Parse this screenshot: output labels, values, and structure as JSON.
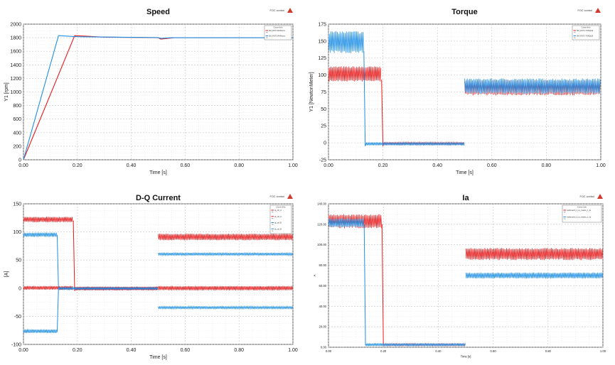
{
  "colors": {
    "series_red": "#e8191a",
    "series_blue": "#1e8fe6",
    "grid": "#c4c4c4",
    "axis": "#333333",
    "legend_border": "#777777",
    "brand": "#d03a2f"
  },
  "chart_data": [
    {
      "id": "speed",
      "type": "line",
      "title": "Speed",
      "badge": "FOC control",
      "xlabel": "Time [s]",
      "ylabel": "Y1 [rpm]",
      "xlim": [
        0,
        1.0
      ],
      "ylim": [
        0,
        2000
      ],
      "xticks": [
        0.0,
        0.2,
        0.4,
        0.6,
        0.8,
        1.0
      ],
      "xtick_labels": [
        "0.00",
        "0.20",
        "0.40",
        "0.60",
        "0.80",
        "1.00"
      ],
      "yticks": [
        0,
        200,
        400,
        600,
        800,
        1000,
        1200,
        1400,
        1600,
        1800,
        2000
      ],
      "ytick_labels": [
        "0",
        "200",
        "400",
        "600",
        "800",
        "1000",
        "1200",
        "1400",
        "1600",
        "1800",
        "2000"
      ],
      "legend": {
        "title": "Curve Info",
        "entries": [
          "SM_ROT1.RAM/rpm",
          "SM_ROT2.RAM/rpm"
        ],
        "sub": "TR"
      },
      "series": [
        {
          "name": "SM_ROT1.RAM/rpm",
          "color": "red",
          "points": [
            [
              0,
              0
            ],
            [
              0.19,
              1830
            ],
            [
              0.3,
              1808
            ],
            [
              0.5,
              1800
            ],
            [
              0.51,
              1780
            ],
            [
              0.56,
              1800
            ],
            [
              1.0,
              1800
            ]
          ]
        },
        {
          "name": "SM_ROT2.RAM/rpm",
          "color": "blue",
          "points": [
            [
              0,
              0
            ],
            [
              0.13,
              1830
            ],
            [
              0.2,
              1815
            ],
            [
              0.5,
              1802
            ],
            [
              0.51,
              1790
            ],
            [
              0.55,
              1800
            ],
            [
              1.0,
              1800
            ]
          ]
        }
      ]
    },
    {
      "id": "torque",
      "type": "line",
      "title": "Torque",
      "badge": "FOC control",
      "xlabel": "Time [s]",
      "ylabel": "Y1 [NewtonMeter]",
      "xlim": [
        0,
        1.0
      ],
      "ylim": [
        -25,
        175
      ],
      "xticks": [
        0.0,
        0.2,
        0.4,
        0.6,
        0.8,
        1.0
      ],
      "xtick_labels": [
        "0.00",
        "0.20",
        "0.40",
        "0.60",
        "0.80",
        "1.00"
      ],
      "yticks": [
        -25,
        0,
        25,
        50,
        75,
        100,
        125,
        150,
        175
      ],
      "ytick_labels": [
        "-25",
        "0",
        "25",
        "50",
        "75",
        "100",
        "125",
        "150",
        "175"
      ],
      "legend": {
        "title": "Curve Info",
        "entries": [
          "SM_ROT1.TORQUE",
          "SM_ROT2.TORQUE"
        ],
        "sub": "TR"
      },
      "series": [
        {
          "name": "SM_ROT1.TORQUE",
          "color": "red",
          "bands": [
            [
              0.0,
              0.195,
              90,
              113
            ],
            [
              0.2,
              0.5,
              -3,
              1
            ],
            [
              0.5,
              1.0,
              70,
              93
            ]
          ],
          "edges": [
            [
              0.195,
              93
            ],
            [
              0.2,
              -5
            ]
          ]
        },
        {
          "name": "SM_ROT2.TORQUE",
          "color": "blue",
          "bands": [
            [
              0.0,
              0.13,
              132,
              165
            ],
            [
              0.135,
              0.5,
              -4,
              1
            ],
            [
              0.5,
              1.0,
              72,
              95
            ]
          ],
          "edges": [
            [
              0.13,
              135
            ],
            [
              0.135,
              -5
            ]
          ]
        }
      ]
    },
    {
      "id": "dq",
      "type": "line",
      "title": "D-Q Current",
      "badge": "FOC control",
      "xlabel": "Time [s]",
      "ylabel": "[A]",
      "xlim": [
        0,
        1.0
      ],
      "ylim": [
        -100,
        150
      ],
      "xticks": [
        0.0,
        0.2,
        0.4,
        0.6,
        0.8,
        1.0
      ],
      "xtick_labels": [
        "0.00",
        "0.20",
        "0.40",
        "0.60",
        "0.80",
        "1.00"
      ],
      "yticks": [
        -100,
        -50,
        0,
        50,
        100,
        150
      ],
      "ytick_labels": [
        "-100",
        "-50",
        "0",
        "50",
        "100",
        "150"
      ],
      "legend": {
        "title": "Curve Info",
        "entries": [
          "Iq_ctrl_A",
          "Id_ctrl_A",
          "Iq_ctrl_B",
          "Id_ctrl_B"
        ],
        "sub": "TR"
      },
      "series": [
        {
          "name": "Iq_ctrl_A",
          "color": "red",
          "bands": [
            [
              0.0,
              0.185,
              117,
              127
            ],
            [
              0.19,
              0.5,
              -4,
              2
            ],
            [
              0.5,
              1.0,
              85,
              97
            ]
          ],
          "edges": [
            [
              0.185,
              120
            ],
            [
              0.19,
              -5
            ]
          ]
        },
        {
          "name": "Id_ctrl_A",
          "color": "red",
          "bands": [
            [
              0.0,
              0.185,
              -3,
              4
            ],
            [
              0.19,
              0.5,
              -2,
              2
            ],
            [
              0.5,
              1.0,
              -4,
              4
            ]
          ]
        },
        {
          "name": "Iq_ctrl_B",
          "color": "blue",
          "bands": [
            [
              0.0,
              0.125,
              91,
              99
            ],
            [
              0.13,
              0.5,
              -3,
              2
            ],
            [
              0.5,
              1.0,
              58,
              63
            ]
          ],
          "edges": [
            [
              0.125,
              95
            ],
            [
              0.13,
              -2
            ]
          ]
        },
        {
          "name": "Id_ctrl_B",
          "color": "blue",
          "bands": [
            [
              0.0,
              0.125,
              -80,
              -73
            ],
            [
              0.13,
              0.5,
              -2,
              1
            ],
            [
              0.5,
              1.0,
              -37,
              -32
            ]
          ],
          "edges": [
            [
              0.125,
              -78
            ],
            [
              0.13,
              0
            ]
          ]
        }
      ]
    },
    {
      "id": "ia",
      "type": "line",
      "title": "Ia",
      "badge": "FOC control",
      "xlabel": "Time [s]",
      "ylabel": "A",
      "xlim": [
        0,
        1.0
      ],
      "ylim": [
        0,
        140
      ],
      "xticks": [
        0.0,
        0.2,
        0.4,
        0.6,
        0.8,
        1.0
      ],
      "xtick_labels": [
        "0.00",
        "0.20",
        "0.40",
        "0.60",
        "0.80",
        "1.00"
      ],
      "yticks": [
        0,
        20,
        40,
        60,
        80,
        100,
        120,
        140
      ],
      "ytick_labels": [
        "0.00",
        "20.00",
        "40.00",
        "60.00",
        "80.00",
        "100.00",
        "120.00",
        "140.00"
      ],
      "legend": {
        "title": "Curve Info",
        "entries": [
          "mathmatch_1_Ia_rmarks_1_Ia",
          "mathmatch_2_Ia_rmarks_2_Ia"
        ],
        "sub": "TR"
      },
      "series": [
        {
          "name": "mathmatch_1_Ia_rmarks_1_Ia",
          "color": "red",
          "bands": [
            [
              0.0,
              0.195,
              116,
              130
            ],
            [
              0.2,
              0.5,
              1,
              4
            ],
            [
              0.5,
              1.0,
              85,
              97
            ]
          ],
          "edges": [
            [
              0.195,
              120
            ],
            [
              0.2,
              2
            ]
          ]
        },
        {
          "name": "mathmatch_2_Ia_rmarks_2_Ia",
          "color": "blue",
          "bands": [
            [
              0.0,
              0.13,
              117,
              126
            ],
            [
              0.135,
              0.5,
              1,
              4
            ],
            [
              0.5,
              1.0,
              67,
              73
            ]
          ],
          "edges": [
            [
              0.13,
              120
            ],
            [
              0.135,
              2
            ]
          ]
        }
      ]
    }
  ]
}
